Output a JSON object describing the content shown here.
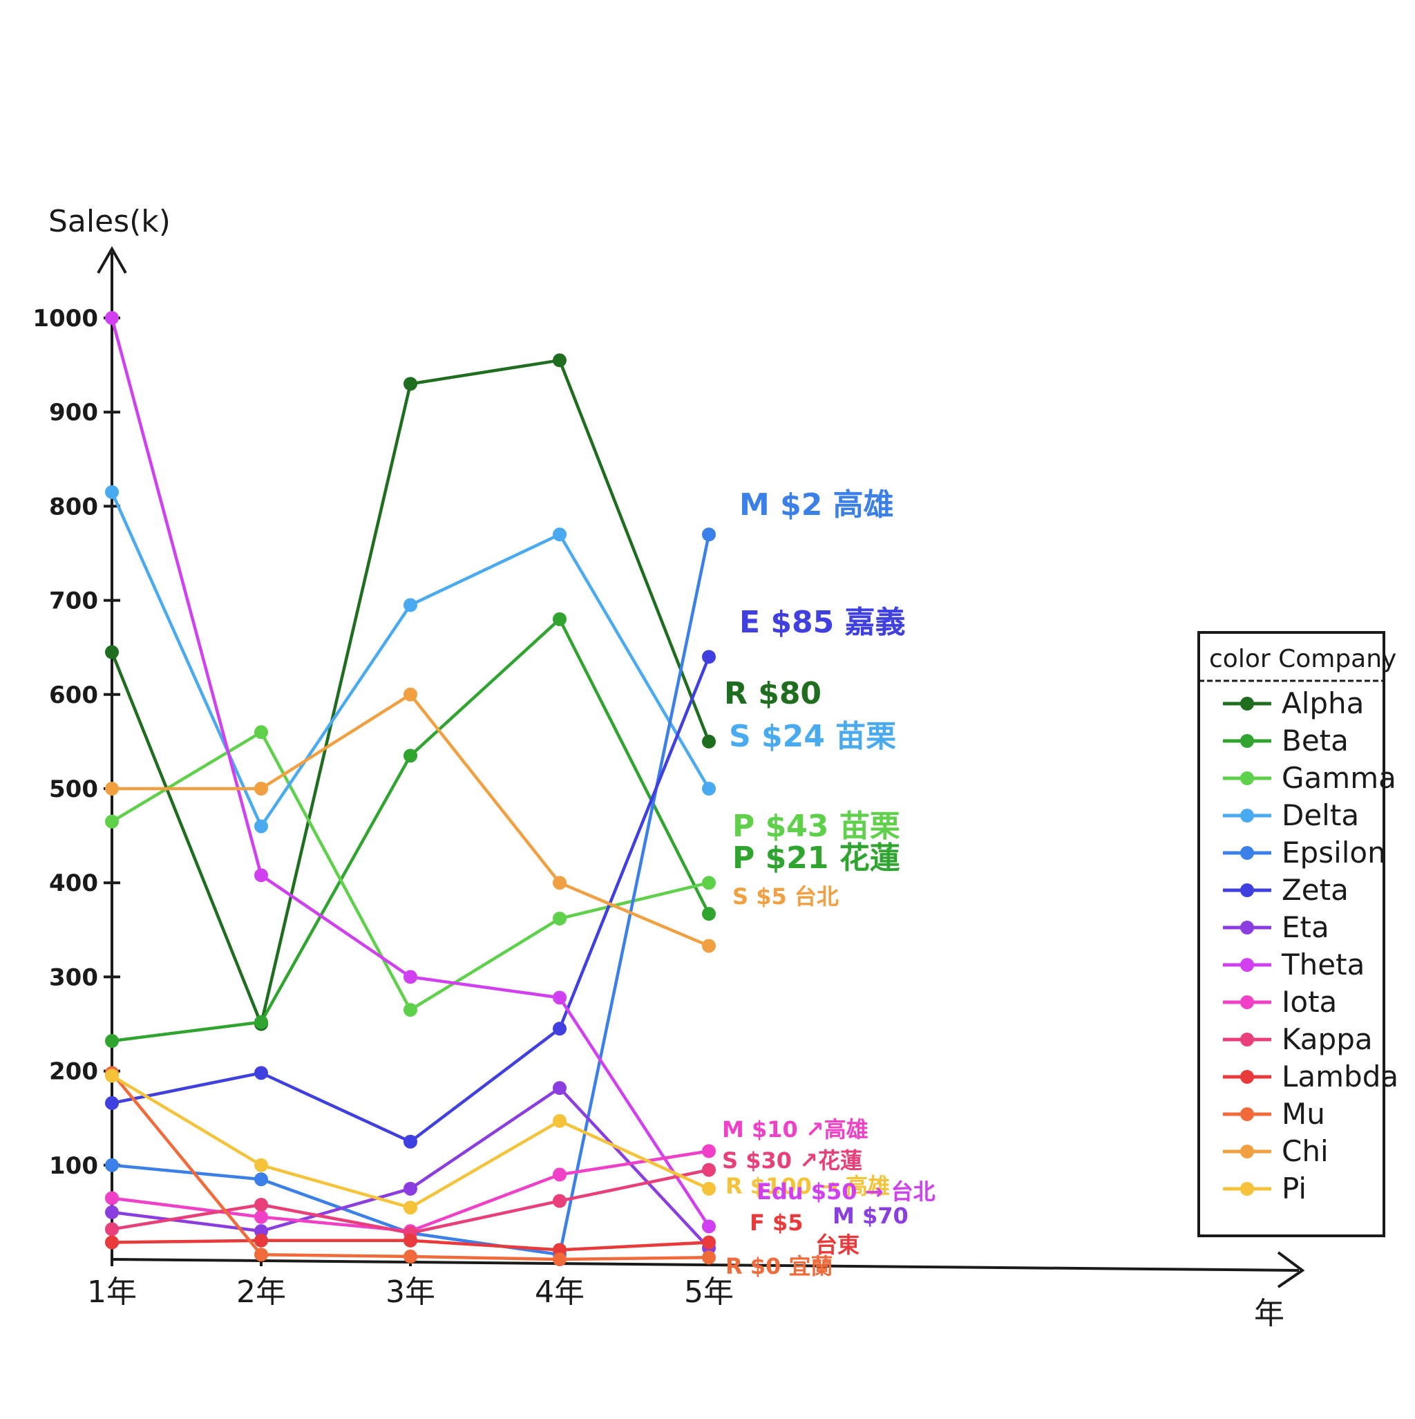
{
  "chart_data": {
    "type": "line",
    "ylabel": "Sales(k)",
    "xlabel": "年",
    "categories": [
      "1年",
      "2年",
      "3年",
      "4年",
      "5年"
    ],
    "y_ticks": [
      100,
      200,
      300,
      400,
      500,
      600,
      700,
      800,
      900,
      1000
    ],
    "ylim": [
      0,
      1000
    ],
    "grid": false,
    "legend": {
      "title": "color Company",
      "position": "right"
    },
    "series": [
      {
        "name": "Alpha",
        "color": "#1f6e1f",
        "values": [
          645,
          250,
          930,
          955,
          550
        ]
      },
      {
        "name": "Beta",
        "color": "#2fa52f",
        "values": [
          232,
          252,
          535,
          680,
          367
        ]
      },
      {
        "name": "Gamma",
        "color": "#5fd04a",
        "values": [
          465,
          560,
          265,
          362,
          400
        ]
      },
      {
        "name": "Delta",
        "color": "#4aaaf0",
        "values": [
          815,
          460,
          695,
          770,
          500
        ]
      },
      {
        "name": "Epsilon",
        "color": "#3b7fe8",
        "values": [
          100,
          85,
          28,
          5,
          770
        ]
      },
      {
        "name": "Zeta",
        "color": "#4040e0",
        "values": [
          166,
          198,
          125,
          245,
          640
        ]
      },
      {
        "name": "Eta",
        "color": "#8a3ee0",
        "values": [
          50,
          30,
          75,
          182,
          12
        ]
      },
      {
        "name": "Theta",
        "color": "#d040f0",
        "values": [
          1000,
          408,
          300,
          278,
          35
        ]
      },
      {
        "name": "Iota",
        "color": "#f040c8",
        "values": [
          65,
          45,
          30,
          90,
          115
        ]
      },
      {
        "name": "Kappa",
        "color": "#e83e7a",
        "values": [
          32,
          58,
          28,
          62,
          95
        ]
      },
      {
        "name": "Lambda",
        "color": "#e83a3a",
        "values": [
          18,
          20,
          20,
          10,
          18
        ]
      },
      {
        "name": "Mu",
        "color": "#f06a3a",
        "values": [
          198,
          5,
          3,
          0,
          2
        ]
      },
      {
        "name": "Chi",
        "color": "#f0a040",
        "values": [
          500,
          500,
          600,
          400,
          333
        ]
      },
      {
        "name": "Pi",
        "color": "#f5c33a",
        "values": [
          195,
          100,
          55,
          147,
          75
        ]
      }
    ],
    "annotations": [
      {
        "text": "M $2 高雄",
        "color": "#3b7fe8"
      },
      {
        "text": "E $85 嘉義",
        "color": "#4040e0"
      },
      {
        "text": "R $80",
        "color": "#1f6e1f"
      },
      {
        "text": "S $24 苗栗",
        "color": "#4aaaf0"
      },
      {
        "text": "P $43 苗栗",
        "color": "#5fd04a"
      },
      {
        "text": "P $21 花蓮",
        "color": "#2fa52f"
      },
      {
        "text": "S $5 台北",
        "color": "#f0a040"
      },
      {
        "text": "M $10 ↗高雄",
        "color": "#f040c8"
      },
      {
        "text": "S $30 ↗花蓮",
        "color": "#e83e7a"
      },
      {
        "text": "R $100 → 高雄",
        "color": "#f5c33a"
      },
      {
        "text": "Edu $50 → 台北",
        "color": "#d040f0"
      },
      {
        "text": "F $5",
        "color": "#e83a3a"
      },
      {
        "text": "M $70",
        "color": "#8a3ee0"
      },
      {
        "text": "台東",
        "color": "#e83a3a"
      },
      {
        "text": "R $0 宜蘭",
        "color": "#f06a3a"
      }
    ]
  }
}
